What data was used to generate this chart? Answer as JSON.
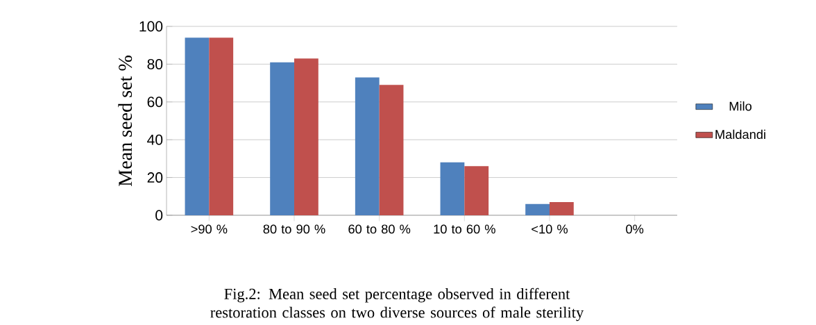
{
  "chart_data": {
    "type": "bar",
    "title": "Fig.2: Mean seed set percentage observed in different restoration classes on two diverse sources of male sterility",
    "ylabel": "Mean seed set %",
    "categories": [
      ">90 %",
      "80 to 90 %",
      "60 to 80 %",
      "10 to 60 %",
      "<10 %",
      "0%"
    ],
    "series": [
      {
        "name": "Milo",
        "color": "#4f81bd",
        "values": [
          94,
          81,
          73,
          28,
          6,
          0
        ]
      },
      {
        "name": "Maldandi",
        "color": "#c0504d",
        "values": [
          94,
          83,
          69,
          26,
          7,
          0
        ]
      }
    ],
    "ylim": [
      0,
      100
    ],
    "yticks": [
      0,
      20,
      40,
      60,
      80,
      100
    ],
    "grid": "y",
    "legend": "right"
  }
}
